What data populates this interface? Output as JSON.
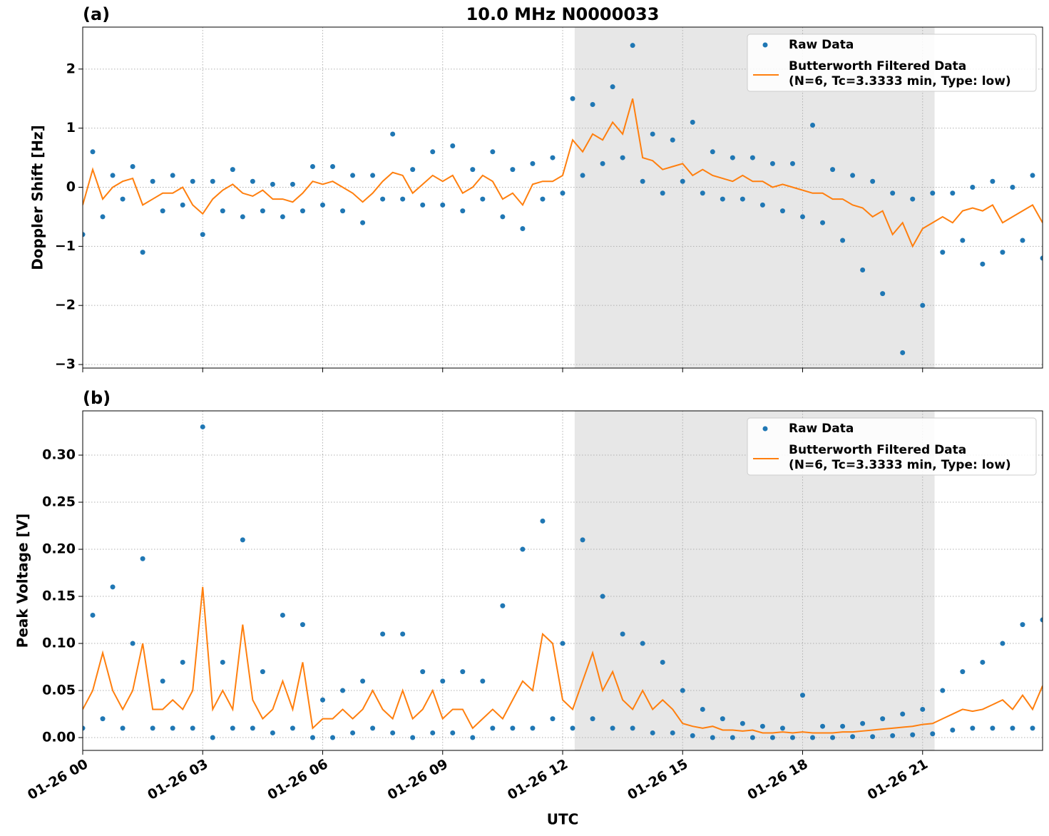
{
  "chart_data": [
    {
      "type": "scatter-line",
      "title": "10.0 MHz N0000033",
      "panel_label": "(a)",
      "y_label": "Doppler Shift [Hz]",
      "x": [
        0,
        0.25,
        0.5,
        0.75,
        1,
        1.25,
        1.5,
        1.75,
        2,
        2.25,
        2.5,
        2.75,
        3,
        3.25,
        3.5,
        3.75,
        4,
        4.25,
        4.5,
        4.75,
        5,
        5.25,
        5.5,
        5.75,
        6,
        6.25,
        6.5,
        6.75,
        7,
        7.25,
        7.5,
        7.75,
        8,
        8.25,
        8.5,
        8.75,
        9,
        9.25,
        9.5,
        9.75,
        10,
        10.25,
        10.5,
        10.75,
        11,
        11.25,
        11.5,
        11.75,
        12,
        12.25,
        12.5,
        12.75,
        13,
        13.25,
        13.5,
        13.75,
        14,
        14.25,
        14.5,
        14.75,
        15,
        15.25,
        15.5,
        15.75,
        16,
        16.25,
        16.5,
        16.75,
        17,
        17.25,
        17.5,
        17.75,
        18,
        18.25,
        18.5,
        18.75,
        19,
        19.25,
        19.5,
        19.75,
        20,
        20.25,
        20.5,
        20.75,
        21,
        21.25,
        21.5,
        21.75,
        22,
        22.25,
        22.5,
        22.75,
        23,
        23.25,
        23.5,
        23.75,
        24
      ],
      "series": [
        {
          "name": "Raw Data",
          "style": "points",
          "color": "#1f77b4",
          "values": [
            -0.8,
            0.6,
            -0.5,
            0.2,
            -0.2,
            0.35,
            -1.1,
            0.1,
            -0.4,
            0.2,
            -0.3,
            0.1,
            -0.8,
            0.1,
            -0.4,
            0.3,
            -0.5,
            0.1,
            -0.4,
            0.05,
            -0.5,
            0.05,
            -0.4,
            0.35,
            -0.3,
            0.35,
            -0.4,
            0.2,
            -0.6,
            0.2,
            -0.2,
            0.9,
            -0.2,
            0.3,
            -0.3,
            0.6,
            -0.3,
            0.7,
            -0.4,
            0.3,
            -0.2,
            0.6,
            -0.5,
            0.3,
            -0.7,
            0.4,
            -0.2,
            0.5,
            -0.1,
            1.5,
            0.2,
            1.4,
            0.4,
            1.7,
            0.5,
            2.4,
            0.1,
            0.9,
            -0.1,
            0.8,
            0.1,
            1.1,
            -0.1,
            0.6,
            -0.2,
            0.5,
            -0.2,
            0.5,
            -0.3,
            0.4,
            -0.4,
            0.4,
            -0.5,
            1.05,
            -0.6,
            0.3,
            -0.9,
            0.2,
            -1.4,
            0.1,
            -1.8,
            -0.1,
            -2.8,
            -0.2,
            -2.0,
            -0.1,
            -1.1,
            -0.1,
            -0.9,
            0.0,
            -1.3,
            0.1,
            -1.1,
            0.0,
            -0.9,
            0.2,
            -1.2
          ]
        },
        {
          "name": "Butterworth Filtered Data",
          "legend_note": "(N=6, Tc=3.3333 min, Type: low)",
          "style": "line",
          "color": "#ff7f0e",
          "values": [
            -0.3,
            0.3,
            -0.2,
            0,
            0.1,
            0.15,
            -0.3,
            -0.2,
            -0.1,
            -0.1,
            0,
            -0.3,
            -0.45,
            -0.2,
            -0.05,
            0.05,
            -0.1,
            -0.15,
            -0.05,
            -0.2,
            -0.2,
            -0.25,
            -0.1,
            0.1,
            0.05,
            0.1,
            0,
            -0.1,
            -0.25,
            -0.1,
            0.1,
            0.25,
            0.2,
            -0.1,
            0.05,
            0.2,
            0.1,
            0.2,
            -0.1,
            0,
            0.2,
            0.1,
            -0.2,
            -0.1,
            -0.3,
            0.05,
            0.1,
            0.1,
            0.2,
            0.8,
            0.6,
            0.9,
            0.8,
            1.1,
            0.9,
            1.5,
            0.5,
            0.45,
            0.3,
            0.35,
            0.4,
            0.2,
            0.3,
            0.2,
            0.15,
            0.1,
            0.2,
            0.1,
            0.1,
            0,
            0.05,
            0,
            -0.05,
            -0.1,
            -0.1,
            -0.2,
            -0.2,
            -0.3,
            -0.35,
            -0.5,
            -0.4,
            -0.8,
            -0.6,
            -1.0,
            -0.7,
            -0.6,
            -0.5,
            -0.6,
            -0.4,
            -0.35,
            -0.4,
            -0.3,
            -0.6,
            -0.5,
            -0.4,
            -0.3,
            -0.6
          ]
        }
      ],
      "shaded_span": [
        12.3,
        21.3
      ],
      "xlim": [
        0,
        24
      ],
      "xticks": [
        0,
        3,
        6,
        9,
        12,
        15,
        18,
        21
      ],
      "ylim": [
        -3.06,
        2.71
      ],
      "yticks": [
        {
          "value": -3,
          "label": "−3"
        },
        {
          "value": -2,
          "label": "−2"
        },
        {
          "value": -1,
          "label": "−1"
        },
        0,
        1,
        2
      ],
      "grid": true,
      "legend": "upper right"
    },
    {
      "type": "scatter-line",
      "panel_label": "(b)",
      "y_label": "Peak Voltage [V]",
      "x_label": "UTC",
      "x": [
        0,
        0.25,
        0.5,
        0.75,
        1,
        1.25,
        1.5,
        1.75,
        2,
        2.25,
        2.5,
        2.75,
        3,
        3.25,
        3.5,
        3.75,
        4,
        4.25,
        4.5,
        4.75,
        5,
        5.25,
        5.5,
        5.75,
        6,
        6.25,
        6.5,
        6.75,
        7,
        7.25,
        7.5,
        7.75,
        8,
        8.25,
        8.5,
        8.75,
        9,
        9.25,
        9.5,
        9.75,
        10,
        10.25,
        10.5,
        10.75,
        11,
        11.25,
        11.5,
        11.75,
        12,
        12.25,
        12.5,
        12.75,
        13,
        13.25,
        13.5,
        13.75,
        14,
        14.25,
        14.5,
        14.75,
        15,
        15.25,
        15.5,
        15.75,
        16,
        16.25,
        16.5,
        16.75,
        17,
        17.25,
        17.5,
        17.75,
        18,
        18.25,
        18.5,
        18.75,
        19,
        19.25,
        19.5,
        19.75,
        20,
        20.25,
        20.5,
        20.75,
        21,
        21.25,
        21.5,
        21.75,
        22,
        22.25,
        22.5,
        22.75,
        23,
        23.25,
        23.5,
        23.75,
        24
      ],
      "series": [
        {
          "name": "Raw Data",
          "style": "points",
          "color": "#1f77b4",
          "values": [
            0.01,
            0.13,
            0.02,
            0.16,
            0.01,
            0.1,
            0.19,
            0.01,
            0.06,
            0.01,
            0.08,
            0.01,
            0.33,
            0.0,
            0.08,
            0.01,
            0.21,
            0.01,
            0.07,
            0.005,
            0.13,
            0.01,
            0.12,
            0.0,
            0.04,
            0.0,
            0.05,
            0.005,
            0.06,
            0.01,
            0.11,
            0.005,
            0.11,
            0.0,
            0.07,
            0.005,
            0.06,
            0.005,
            0.07,
            0.0,
            0.06,
            0.01,
            0.14,
            0.01,
            0.2,
            0.01,
            0.23,
            0.02,
            0.1,
            0.01,
            0.21,
            0.02,
            0.15,
            0.01,
            0.11,
            0.01,
            0.1,
            0.005,
            0.08,
            0.005,
            0.05,
            0.002,
            0.03,
            0.0,
            0.02,
            0.0,
            0.015,
            0.0,
            0.012,
            0.0,
            0.01,
            0.0,
            0.045,
            0.0,
            0.012,
            0.0,
            0.012,
            0.001,
            0.015,
            0.001,
            0.02,
            0.002,
            0.025,
            0.003,
            0.03,
            0.004,
            0.05,
            0.008,
            0.07,
            0.01,
            0.08,
            0.01,
            0.1,
            0.01,
            0.12,
            0.01,
            0.125
          ]
        },
        {
          "name": "Butterworth Filtered Data",
          "legend_note": "(N=6, Tc=3.3333 min, Type: low)",
          "style": "line",
          "color": "#ff7f0e",
          "values": [
            0.03,
            0.05,
            0.09,
            0.05,
            0.03,
            0.05,
            0.1,
            0.03,
            0.03,
            0.04,
            0.03,
            0.05,
            0.16,
            0.03,
            0.05,
            0.03,
            0.12,
            0.04,
            0.02,
            0.03,
            0.06,
            0.03,
            0.08,
            0.01,
            0.02,
            0.02,
            0.03,
            0.02,
            0.03,
            0.05,
            0.03,
            0.02,
            0.05,
            0.02,
            0.03,
            0.05,
            0.02,
            0.03,
            0.03,
            0.01,
            0.02,
            0.03,
            0.02,
            0.04,
            0.06,
            0.05,
            0.11,
            0.1,
            0.04,
            0.03,
            0.06,
            0.09,
            0.05,
            0.07,
            0.04,
            0.03,
            0.05,
            0.03,
            0.04,
            0.03,
            0.015,
            0.012,
            0.01,
            0.012,
            0.008,
            0.008,
            0.007,
            0.008,
            0.005,
            0.005,
            0.006,
            0.005,
            0.006,
            0.005,
            0.005,
            0.005,
            0.006,
            0.006,
            0.007,
            0.008,
            0.009,
            0.01,
            0.011,
            0.012,
            0.014,
            0.015,
            0.02,
            0.025,
            0.03,
            0.028,
            0.03,
            0.035,
            0.04,
            0.03,
            0.045,
            0.03,
            0.055
          ]
        }
      ],
      "shaded_span": [
        12.3,
        21.3
      ],
      "xlim": [
        0,
        24
      ],
      "xticks": [
        {
          "value": 0,
          "label": "01-26 00"
        },
        {
          "value": 3,
          "label": "01-26 03"
        },
        {
          "value": 6,
          "label": "01-26 06"
        },
        {
          "value": 9,
          "label": "01-26 09"
        },
        {
          "value": 12,
          "label": "01-26 12"
        },
        {
          "value": 15,
          "label": "01-26 15"
        },
        {
          "value": 18,
          "label": "01-26 18"
        },
        {
          "value": 21,
          "label": "01-26 21"
        }
      ],
      "ylim": [
        -0.0136,
        0.347
      ],
      "yticks": [
        {
          "value": 0,
          "label": "0.00"
        },
        {
          "value": 0.05,
          "label": "0.05"
        },
        {
          "value": 0.1,
          "label": "0.10"
        },
        {
          "value": 0.15,
          "label": "0.15"
        },
        {
          "value": 0.2,
          "label": "0.20"
        },
        {
          "value": 0.25,
          "label": "0.25"
        },
        {
          "value": 0.3,
          "label": "0.30"
        }
      ],
      "grid": true,
      "legend": "upper right"
    }
  ]
}
